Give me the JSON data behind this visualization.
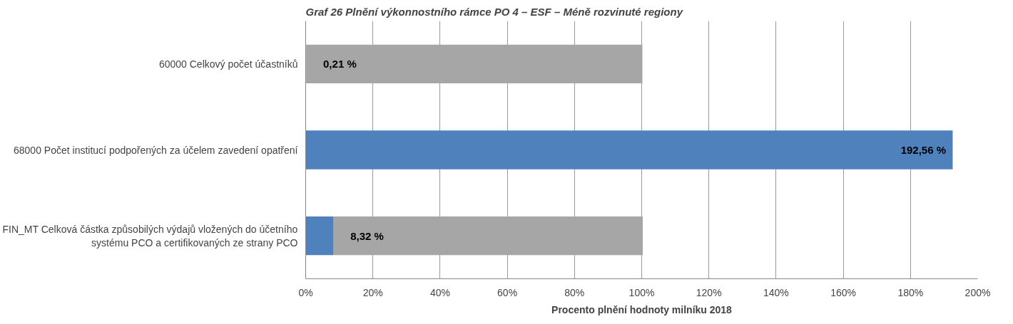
{
  "chart_data": {
    "type": "bar",
    "orientation": "horizontal",
    "stacked": true,
    "title": "Graf 26 Plnění výkonnostního rámce PO 4 – ESF – Méně rozvinuté regiony",
    "xlabel": "Procento plnění hodnoty milníku 2018",
    "categories": [
      "60000 Celkový počet účastníků",
      "68000 Počet institucí podpořených za účelem zavedení opatření",
      "FIN_MT Celková částka způsobilých výdajů vložených do účetního systému PCO a certifikovaných ze strany PCO"
    ],
    "series": [
      {
        "color": "#4f81bd",
        "values": [
          0.21,
          192.56,
          8.32
        ],
        "value_labels": [
          "0,21 %",
          "192,56 %",
          "8,32 %"
        ]
      },
      {
        "color": "#a6a6a6",
        "values": [
          100,
          null,
          92
        ]
      }
    ],
    "xlim": [
      0,
      200
    ],
    "xticks": [
      {
        "value": 0,
        "label": "0%"
      },
      {
        "value": 20,
        "label": "20%"
      },
      {
        "value": 40,
        "label": "40%"
      },
      {
        "value": 60,
        "label": "60%"
      },
      {
        "value": 80,
        "label": "80%"
      },
      {
        "value": 100,
        "label": "100%"
      },
      {
        "value": 120,
        "label": "120%"
      },
      {
        "value": 140,
        "label": "140%"
      },
      {
        "value": 160,
        "label": "160%"
      },
      {
        "value": 180,
        "label": "180%"
      },
      {
        "value": 200,
        "label": "200%"
      }
    ],
    "grid": "x"
  }
}
